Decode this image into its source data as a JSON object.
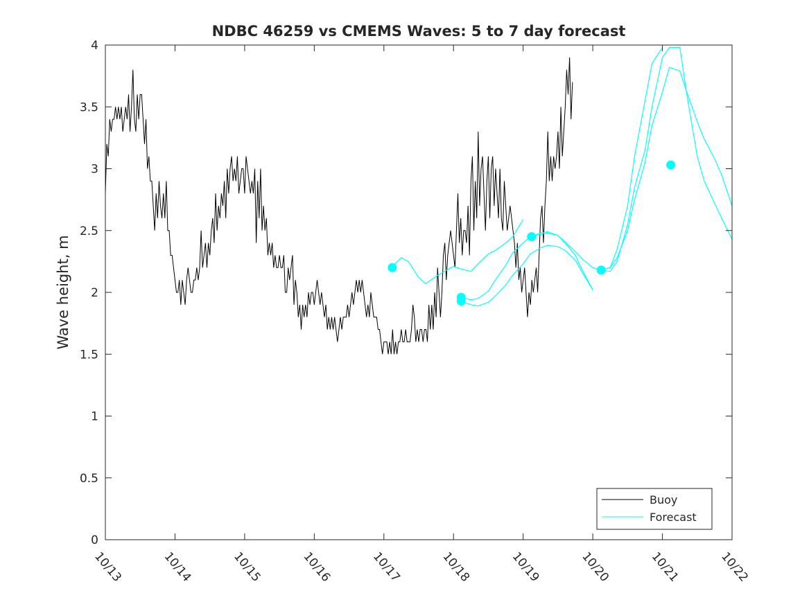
{
  "chart_data": {
    "type": "line",
    "title": "NDBC 46259 vs CMEMS Waves: 5 to 7 day forecast",
    "xlabel": "",
    "ylabel": "Wave height, m",
    "xlim": [
      0,
      9
    ],
    "ylim": [
      0,
      4
    ],
    "x_tick_labels": [
      "10/13",
      "10/14",
      "10/15",
      "10/16",
      "10/17",
      "10/18",
      "10/19",
      "10/20",
      "10/21",
      "10/22"
    ],
    "x_tick_positions_days": [
      0,
      1,
      2,
      3,
      4,
      5,
      6,
      7,
      8,
      9
    ],
    "y_ticks": [
      0,
      0.5,
      1,
      1.5,
      2,
      2.5,
      3,
      3.5,
      4
    ],
    "y_tick_labels": [
      "0",
      "0.5",
      "1",
      "1.5",
      "2",
      "2.5",
      "3",
      "3.5",
      "4"
    ],
    "legend": {
      "position": "bottom-right",
      "entries": [
        {
          "label": "Buoy",
          "color": "#000000"
        },
        {
          "label": "Forecast",
          "color": "#00ffff"
        }
      ]
    },
    "buoy": {
      "name": "Buoy",
      "color": "#000000",
      "x_start_days": 0,
      "step_days": 0.0208333,
      "values": [
        2.8,
        3.2,
        3.1,
        3.4,
        3.3,
        3.4,
        3.4,
        3.5,
        3.4,
        3.5,
        3.4,
        3.5,
        3.3,
        3.4,
        3.5,
        3.4,
        3.6,
        3.3,
        3.5,
        3.8,
        3.4,
        3.3,
        3.6,
        3.4,
        3.6,
        3.6,
        3.4,
        3.2,
        3.4,
        3.0,
        3.1,
        2.9,
        2.9,
        2.7,
        2.5,
        2.8,
        2.6,
        2.9,
        2.7,
        2.6,
        2.8,
        2.6,
        2.9,
        2.5,
        2.5,
        2.3,
        2.3,
        2.2,
        2.1,
        2.0,
        2.0,
        2.1,
        1.9,
        2.1,
        2.0,
        1.9,
        2.1,
        2.2,
        2.1,
        2.0,
        2.0,
        2.1,
        2.1,
        2.2,
        2.1,
        2.2,
        2.5,
        2.2,
        2.3,
        2.4,
        2.2,
        2.4,
        2.3,
        2.5,
        2.6,
        2.4,
        2.8,
        2.5,
        2.7,
        2.6,
        2.8,
        2.7,
        2.9,
        2.6,
        3.0,
        2.8,
        3.0,
        3.1,
        2.9,
        3.0,
        2.9,
        3.1,
        2.8,
        2.9,
        3.0,
        3.0,
        2.8,
        3.1,
        3.0,
        2.9,
        2.8,
        2.9,
        2.8,
        3.0,
        2.4,
        2.9,
        2.6,
        3.0,
        2.5,
        2.7,
        2.5,
        2.6,
        2.3,
        2.4,
        2.3,
        2.4,
        2.2,
        2.3,
        2.2,
        2.2,
        2.3,
        2.2,
        2.2,
        2.3,
        2.0,
        2.0,
        2.2,
        2.1,
        2.2,
        2.3,
        1.9,
        2.1,
        2.0,
        1.8,
        1.9,
        1.7,
        1.9,
        1.8,
        1.9,
        1.8,
        2.0,
        1.9,
        2.0,
        2.0,
        1.9,
        2.0,
        2.1,
        2.0,
        1.9,
        2.0,
        1.9,
        1.8,
        1.9,
        1.7,
        1.8,
        1.7,
        1.8,
        1.7,
        1.8,
        1.7,
        1.6,
        1.7,
        1.8,
        1.7,
        1.8,
        1.8,
        1.8,
        1.9,
        1.8,
        1.9,
        2.0,
        1.9,
        2.0,
        2.1,
        2.0,
        2.1,
        2.0,
        2.1,
        2.0,
        1.9,
        1.8,
        1.9,
        1.8,
        2.0,
        1.9,
        1.8,
        1.8,
        1.8,
        1.7,
        1.7,
        1.6,
        1.5,
        1.6,
        1.6,
        1.6,
        1.5,
        1.6,
        1.5,
        1.7,
        1.5,
        1.6,
        1.5,
        1.6,
        1.6,
        1.7,
        1.6,
        1.6,
        1.7,
        1.6,
        1.6,
        1.6,
        1.7,
        1.9,
        1.8,
        1.6,
        1.7,
        1.6,
        1.7,
        1.7,
        1.6,
        1.7,
        1.7,
        1.6,
        1.9,
        1.7,
        1.9,
        1.7,
        2.0,
        1.8,
        2.2,
        2.0,
        1.8,
        2.0,
        2.3,
        2.4,
        2.1,
        2.3,
        2.4,
        2.5,
        2.4,
        2.3,
        2.2,
        2.5,
        2.8,
        2.4,
        2.6,
        2.3,
        2.5,
        2.5,
        2.4,
        2.7,
        2.3,
        2.9,
        3.1,
        2.5,
        2.9,
        2.6,
        3.3,
        2.7,
        3.0,
        3.1,
        2.8,
        2.5,
        2.9,
        3.1,
        2.6,
        3.0,
        3.1,
        2.7,
        3.0,
        2.8,
        2.6,
        3.0,
        2.6,
        2.5,
        2.9,
        2.7,
        2.5,
        2.6,
        2.7,
        2.6,
        2.5,
        2.4,
        2.2,
        2.4,
        2.1,
        2.2,
        2.0,
        2.1,
        2.2,
        2.0,
        1.8,
        2.0,
        1.9,
        2.1,
        2.0,
        2.1,
        2.2,
        2.0,
        2.3,
        2.6,
        2.7,
        2.4,
        2.7,
        2.9,
        3.3,
        2.9,
        3.1,
        2.9,
        3.1,
        3.0,
        3.1,
        3.3,
        3.0,
        3.5,
        3.1,
        3.3,
        3.5,
        3.8,
        3.6,
        3.9,
        3.4,
        3.7
      ]
    },
    "forecasts": [
      {
        "name": "Forecast",
        "color": "#00ffff",
        "x": [
          4.1,
          4.25,
          4.35,
          4.5,
          4.6,
          4.75,
          4.9,
          5.0,
          5.1,
          5.25,
          5.35,
          5.5,
          5.6,
          5.75,
          5.85,
          6.0
        ],
        "y": [
          2.2,
          2.28,
          2.25,
          2.12,
          2.07,
          2.13,
          2.18,
          2.21,
          2.19,
          2.17,
          2.23,
          2.31,
          2.34,
          2.4,
          2.45,
          2.59
        ]
      },
      {
        "name": "Forecast",
        "color": "#00ffff",
        "x": [
          5.1,
          5.25,
          5.35,
          5.5,
          5.6,
          5.75,
          5.85,
          6.0,
          6.1,
          6.25,
          6.35,
          6.5,
          6.6,
          6.75,
          6.85,
          7.0
        ],
        "y": [
          1.96,
          1.94,
          1.95,
          2.01,
          2.1,
          2.22,
          2.32,
          2.4,
          2.45,
          2.47,
          2.48,
          2.46,
          2.4,
          2.3,
          2.18,
          2.02
        ]
      },
      {
        "name": "Forecast",
        "color": "#00ffff",
        "x": [
          5.1,
          5.25,
          5.35,
          5.5,
          5.6,
          5.75,
          5.85,
          6.0,
          6.1,
          6.25,
          6.35,
          6.5,
          6.6,
          6.75,
          6.85,
          7.0
        ],
        "y": [
          1.93,
          1.9,
          1.89,
          1.92,
          1.97,
          2.06,
          2.14,
          2.23,
          2.31,
          2.36,
          2.38,
          2.37,
          2.34,
          2.26,
          2.16,
          2.02
        ]
      },
      {
        "name": "Forecast",
        "color": "#00ffff",
        "x": [
          6.1,
          6.25,
          6.35,
          6.5,
          6.6,
          6.75,
          6.85,
          7.0,
          7.1,
          7.25,
          7.35,
          7.5,
          7.6,
          7.75,
          7.85,
          8.0
        ],
        "y": [
          2.45,
          2.48,
          2.49,
          2.46,
          2.41,
          2.33,
          2.27,
          2.2,
          2.18,
          2.2,
          2.35,
          2.7,
          3.1,
          3.55,
          3.85,
          3.98
        ]
      },
      {
        "name": "Forecast",
        "color": "#00ffff",
        "x": [
          7.1,
          7.25,
          7.35,
          7.5,
          7.6,
          7.75,
          7.85,
          8.0,
          8.1,
          8.25,
          8.35,
          8.5,
          8.6,
          8.75,
          8.85,
          9.0
        ],
        "y": [
          2.18,
          2.2,
          2.28,
          2.5,
          2.75,
          3.05,
          3.35,
          3.62,
          3.82,
          3.79,
          3.62,
          3.38,
          3.24,
          3.08,
          2.95,
          2.7
        ]
      },
      {
        "name": "Forecast",
        "color": "#00ffff",
        "x": [
          7.1,
          7.25,
          7.35,
          7.5,
          7.6,
          7.75,
          7.85,
          8.0,
          8.1,
          8.25,
          8.35,
          8.5,
          8.6,
          8.75,
          8.85,
          9.0
        ],
        "y": [
          2.18,
          2.17,
          2.25,
          2.55,
          2.85,
          3.15,
          3.5,
          3.9,
          3.98,
          3.98,
          3.6,
          3.1,
          2.9,
          2.72,
          2.6,
          2.43
        ]
      }
    ],
    "forecast_markers": [
      {
        "x": 4.12,
        "y": 2.2
      },
      {
        "x": 5.11,
        "y": 1.96
      },
      {
        "x": 5.11,
        "y": 1.93
      },
      {
        "x": 6.12,
        "y": 2.45
      },
      {
        "x": 7.12,
        "y": 2.18
      },
      {
        "x": 8.12,
        "y": 3.03
      }
    ]
  }
}
